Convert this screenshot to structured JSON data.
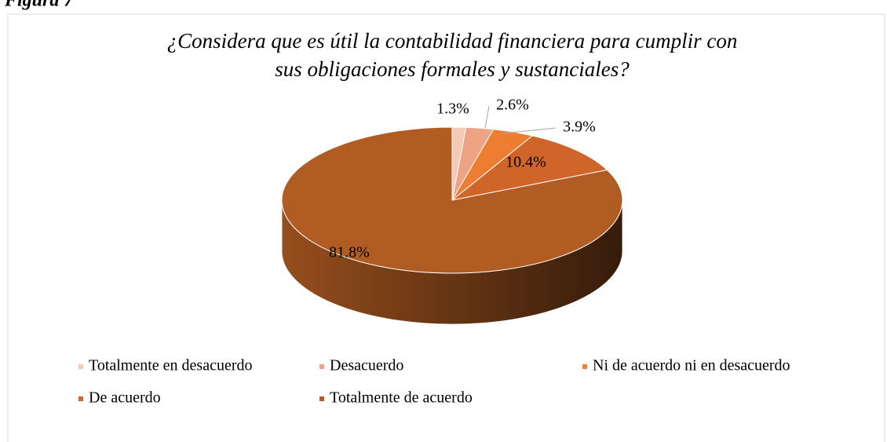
{
  "figure_label": "Figura 7",
  "chart_data": {
    "type": "pie",
    "title": [
      "¿Considera que es útil la contabilidad financiera para cumplir con",
      "sus obligaciones formales y sustanciales?"
    ],
    "categories": [
      "Totalmente en desacuerdo",
      "Desacuerdo",
      "Ni de acuerdo ni en desacuerdo",
      "De acuerdo",
      "Totalmente de acuerdo"
    ],
    "values": [
      1.3,
      2.6,
      3.9,
      10.4,
      81.8
    ],
    "value_labels": [
      "1.3%",
      "2.6%",
      "3.9%",
      "10.4%",
      "81.8%"
    ],
    "colors": [
      "#f6c9b6",
      "#efa385",
      "#ed7d31",
      "#d0652a",
      "#b15c22"
    ],
    "legend": "bottom"
  }
}
